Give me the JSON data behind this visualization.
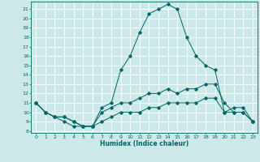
{
  "xlabel": "Humidex (Indice chaleur)",
  "bg_color": "#cce8e8",
  "grid_color": "#ffffff",
  "line_color": "#006666",
  "xlim": [
    -0.5,
    23.5
  ],
  "ylim": [
    7.8,
    21.8
  ],
  "xticks": [
    0,
    1,
    2,
    3,
    4,
    5,
    6,
    7,
    8,
    9,
    10,
    11,
    12,
    13,
    14,
    15,
    16,
    17,
    18,
    19,
    20,
    21,
    22,
    23
  ],
  "yticks": [
    8,
    9,
    10,
    11,
    12,
    13,
    14,
    15,
    16,
    17,
    18,
    19,
    20,
    21
  ],
  "line1_x": [
    0,
    1,
    2,
    3,
    4,
    5,
    6,
    7,
    8,
    9,
    10,
    11,
    12,
    13,
    14,
    15,
    16,
    17,
    18,
    19,
    20,
    21,
    22,
    23
  ],
  "line1_y": [
    11,
    10,
    9.5,
    9,
    8.5,
    8.5,
    8.5,
    10.5,
    11,
    14.5,
    16,
    18.5,
    20.5,
    21,
    21.5,
    21,
    18,
    16,
    15,
    14.5,
    10,
    10.5,
    10.5,
    9
  ],
  "line2_x": [
    0,
    1,
    2,
    3,
    4,
    5,
    6,
    7,
    8,
    9,
    10,
    11,
    12,
    13,
    14,
    15,
    16,
    17,
    18,
    19,
    20,
    21,
    22,
    23
  ],
  "line2_y": [
    11,
    10,
    9.5,
    9.5,
    9,
    8.5,
    8.5,
    10,
    10.5,
    11,
    11,
    11.5,
    12,
    12,
    12.5,
    12,
    12.5,
    12.5,
    13,
    13,
    11,
    10,
    10,
    9
  ],
  "line3_x": [
    0,
    1,
    2,
    3,
    4,
    5,
    6,
    7,
    8,
    9,
    10,
    11,
    12,
    13,
    14,
    15,
    16,
    17,
    18,
    19,
    20,
    21,
    22,
    23
  ],
  "line3_y": [
    11,
    10,
    9.5,
    9.5,
    9,
    8.5,
    8.5,
    9,
    9.5,
    10,
    10,
    10,
    10.5,
    10.5,
    11,
    11,
    11,
    11,
    11.5,
    11.5,
    10,
    10,
    10,
    9
  ],
  "marker_size": 1.8,
  "line_width": 0.7,
  "tick_fontsize": 4.5,
  "xlabel_fontsize": 5.5
}
